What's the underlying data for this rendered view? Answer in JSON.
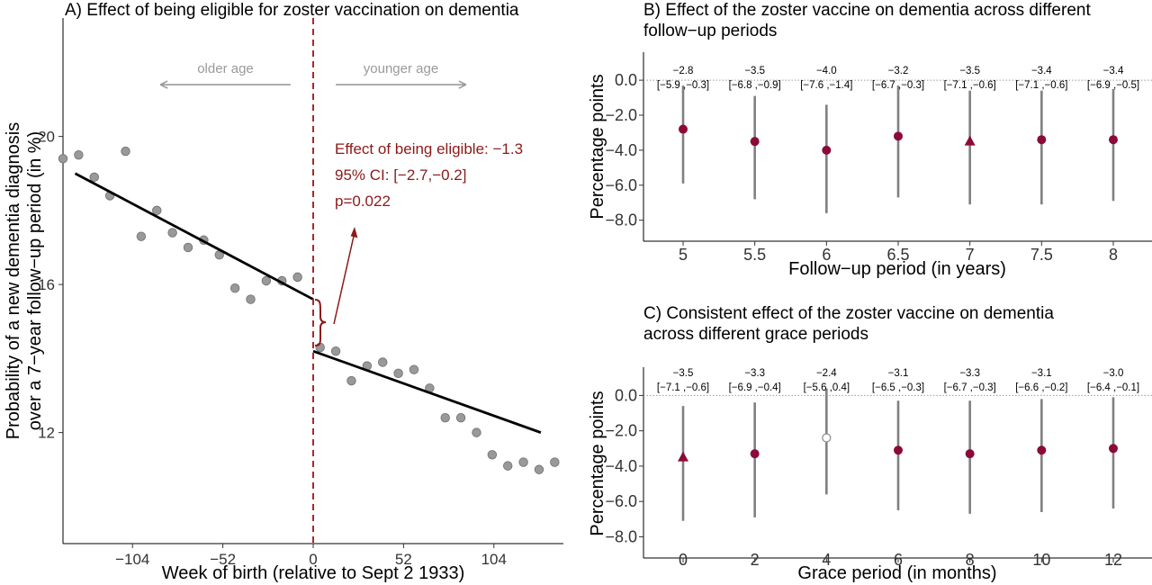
{
  "chart_data": [
    {
      "type": "scatter",
      "panel_title": "A) Effect of being eligible for zoster vaccination on dementia",
      "xlabel": "Week of birth (relative to Sept 2 1933)",
      "ylabel_line1": "Probability of a new dementia diagnosis",
      "ylabel_line2": "over a 7−year follow−up period (in %)",
      "xlim": [
        -144,
        144
      ],
      "ylim": [
        9.0,
        23.2
      ],
      "x_ticks": [
        -104,
        -52,
        0,
        52,
        104
      ],
      "x_tick_labels": [
        "−104",
        "−52",
        "0",
        "52",
        "104"
      ],
      "y_ticks": [
        12,
        16,
        20
      ],
      "y_tick_labels": [
        "12",
        "16",
        "20"
      ],
      "points": [
        {
          "x": -144,
          "y": 19.4
        },
        {
          "x": -135,
          "y": 19.5
        },
        {
          "x": -126,
          "y": 18.9
        },
        {
          "x": -117,
          "y": 18.4
        },
        {
          "x": -108,
          "y": 19.6
        },
        {
          "x": -99,
          "y": 17.3
        },
        {
          "x": -90,
          "y": 18.0
        },
        {
          "x": -81,
          "y": 17.4
        },
        {
          "x": -72,
          "y": 17.0
        },
        {
          "x": -63,
          "y": 17.2
        },
        {
          "x": -54,
          "y": 16.8
        },
        {
          "x": -45,
          "y": 15.9
        },
        {
          "x": -36,
          "y": 15.6
        },
        {
          "x": -27,
          "y": 16.1
        },
        {
          "x": -18,
          "y": 16.1
        },
        {
          "x": -9,
          "y": 16.2
        },
        {
          "x": 4,
          "y": 14.3
        },
        {
          "x": 13,
          "y": 14.2
        },
        {
          "x": 22,
          "y": 13.4
        },
        {
          "x": 31,
          "y": 13.8
        },
        {
          "x": 40,
          "y": 13.9
        },
        {
          "x": 49,
          "y": 13.6
        },
        {
          "x": 58,
          "y": 13.7
        },
        {
          "x": 67,
          "y": 13.2
        },
        {
          "x": 76,
          "y": 12.4
        },
        {
          "x": 85,
          "y": 12.4
        },
        {
          "x": 94,
          "y": 12.0
        },
        {
          "x": 103,
          "y": 11.4
        },
        {
          "x": 112,
          "y": 11.1
        },
        {
          "x": 121,
          "y": 11.2
        },
        {
          "x": 130,
          "y": 11.0
        },
        {
          "x": 139,
          "y": 11.2
        }
      ],
      "fit_lines": [
        {
          "x": [
            -137,
            0
          ],
          "y": [
            19.0,
            15.6
          ]
        },
        {
          "x": [
            0,
            131
          ],
          "y": [
            14.2,
            12.0
          ]
        }
      ],
      "cutoff_x": 0,
      "arrows": [
        {
          "label": "older age",
          "x_from": -13,
          "x_to": -88,
          "y": 21.4
        },
        {
          "label": "younger age",
          "x_from": 13,
          "x_to": 88,
          "y": 21.4
        }
      ],
      "annotation_lines": [
        "Effect of being eligible: −1.3",
        "95% CI: [−2.7,−0.2]",
        "p=0.022"
      ],
      "colors": {
        "points": "#999999",
        "fit": "#000000",
        "cutoff": "#a52a2a",
        "annotation": "#8b1a1a"
      }
    },
    {
      "type": "scatter",
      "panel_title_line1": "B) Effect of the zoster vaccine on dementia across different",
      "panel_title_line2": "follow−up periods",
      "xlabel": "Follow−up period (in years)",
      "ylabel": "Percentage points",
      "ylim": [
        -9.2,
        1.6
      ],
      "y_ticks": [
        0,
        -2,
        -4,
        -6,
        -8
      ],
      "y_tick_labels": [
        "0.0",
        "−2.0",
        "−4.0",
        "−6.0",
        "−8.0"
      ],
      "categories": [
        "5",
        "5.5",
        "6",
        "6.5",
        "7",
        "7.5",
        "8"
      ],
      "estimates": [
        -2.8,
        -3.5,
        -4.0,
        -3.2,
        -3.5,
        -3.4,
        -3.4
      ],
      "ci_low": [
        -5.9,
        -6.8,
        -7.6,
        -6.7,
        -7.1,
        -7.1,
        -6.9
      ],
      "ci_high": [
        -0.3,
        -0.9,
        -1.4,
        -0.3,
        -0.6,
        -0.6,
        -0.5
      ],
      "estimate_labels": [
        "−2.8",
        "−3.5",
        "−4.0",
        "−3.2",
        "−3.5",
        "−3.4",
        "−3.4"
      ],
      "ci_labels": [
        "[−5.9 ,−0.3]",
        "[−6.8 ,−0.9]",
        "[−7.6 ,−1.4]",
        "[−6.7 ,−0.3]",
        "[−7.1 ,−0.6]",
        "[−7.1 ,−0.6]",
        "[−6.9 ,−0.5]"
      ],
      "markers": [
        "circle",
        "circle",
        "circle",
        "circle",
        "triangle",
        "circle",
        "circle"
      ],
      "colors": {
        "marker": "#8b0a3a",
        "ci": "#808080",
        "open_marker": "#ffffff"
      }
    },
    {
      "type": "scatter",
      "panel_title_line1": "C) Consistent effect of the zoster vaccine on dementia",
      "panel_title_line2": "across different grace periods",
      "xlabel": "Grace period (in months)",
      "ylabel": "Percentage points",
      "ylim": [
        -9.2,
        1.6
      ],
      "y_ticks": [
        0,
        -2,
        -4,
        -6,
        -8
      ],
      "y_tick_labels": [
        "0.0",
        "−2.0",
        "−4.0",
        "−6.0",
        "−8.0"
      ],
      "categories": [
        "0",
        "2",
        "4",
        "6",
        "8",
        "10",
        "12"
      ],
      "estimates": [
        -3.5,
        -3.3,
        -2.4,
        -3.1,
        -3.3,
        -3.1,
        -3.0
      ],
      "ci_low": [
        -7.1,
        -6.9,
        -5.6,
        -6.5,
        -6.7,
        -6.6,
        -6.4
      ],
      "ci_high": [
        -0.6,
        -0.4,
        0.4,
        -0.3,
        -0.3,
        -0.2,
        -0.1
      ],
      "estimate_labels": [
        "−3.5",
        "−3.3",
        "−2.4",
        "−3.1",
        "−3.3",
        "−3.1",
        "−3.0"
      ],
      "ci_labels": [
        "[−7.1 ,−0.6]",
        "[−6.9 ,−0.4]",
        "[−5.6 ,0.4]",
        "[−6.5 ,−0.3]",
        "[−6.7 ,−0.3]",
        "[−6.6 ,−0.2]",
        "[−6.4 ,−0.1]"
      ],
      "markers": [
        "triangle",
        "circle",
        "open-circle",
        "circle",
        "circle",
        "circle",
        "circle"
      ],
      "colors": {
        "marker": "#8b0a3a",
        "ci": "#808080",
        "open_marker": "#ffffff"
      }
    }
  ]
}
